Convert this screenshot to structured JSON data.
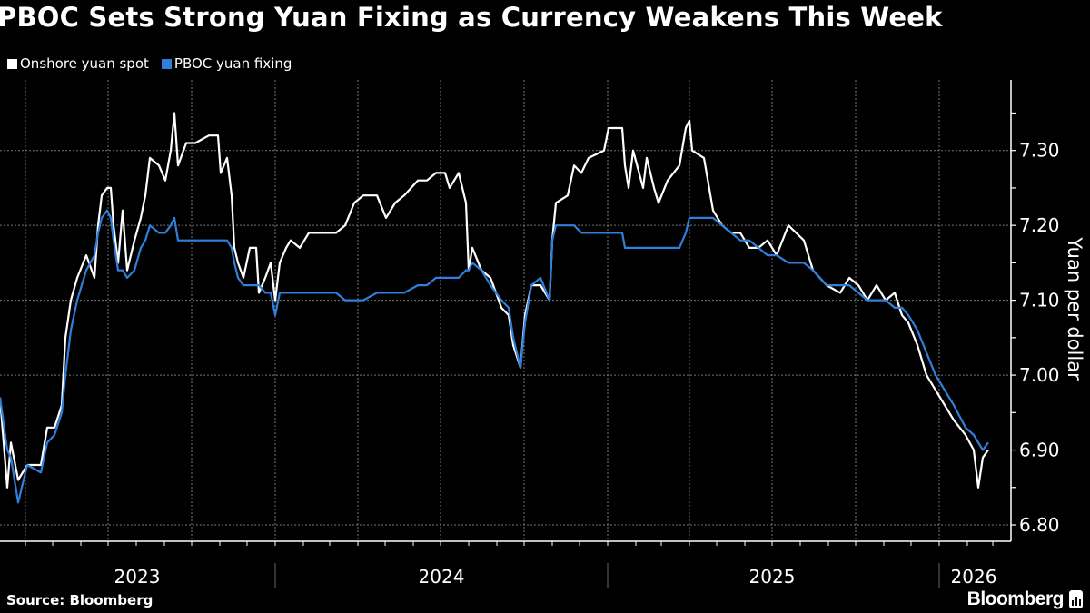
{
  "title": "PBOC Sets Strong Yuan Fixing as Currency Weakens This Week",
  "source": "Source: Bloomberg",
  "logo": "Bloomberg",
  "chart_data": {
    "type": "line",
    "ylabel": "Yuan per dollar",
    "xlabel": "",
    "ylim": [
      6.78,
      7.395
    ],
    "y_ticks": [
      "6.80",
      "6.90",
      "7.00",
      "7.10",
      "7.20",
      "7.30"
    ],
    "x_tick_labels": [
      "2023",
      "2024",
      "2025",
      "2026"
    ],
    "xlim": [
      "2023-03-04",
      "2026-02-26"
    ],
    "grid": true,
    "y_axis_side": "right",
    "legend_position": "top-left",
    "x": [
      "2023-03-04",
      "2023-03-12",
      "2023-03-16",
      "2023-03-24",
      "2023-04-03",
      "2023-04-18",
      "2023-04-25",
      "2023-05-03",
      "2023-05-11",
      "2023-05-15",
      "2023-05-21",
      "2023-05-28",
      "2023-06-07",
      "2023-06-16",
      "2023-06-20",
      "2023-06-24",
      "2023-06-30",
      "2023-07-04",
      "2023-07-07",
      "2023-07-12",
      "2023-07-17",
      "2023-07-22",
      "2023-07-30",
      "2023-08-06",
      "2023-08-11",
      "2023-08-16",
      "2023-08-26",
      "2023-09-02",
      "2023-09-08",
      "2023-09-12",
      "2023-09-16",
      "2023-09-25",
      "2023-10-05",
      "2023-10-20",
      "2023-10-30",
      "2023-11-02",
      "2023-11-09",
      "2023-11-14",
      "2023-11-17",
      "2023-11-21",
      "2023-11-27",
      "2023-12-04",
      "2023-12-11",
      "2023-12-14",
      "2023-12-21",
      "2023-12-27",
      "2024-01-01",
      "2024-01-06",
      "2024-01-13",
      "2024-01-18",
      "2024-01-28",
      "2024-02-07",
      "2024-02-17",
      "2024-02-27",
      "2024-03-08",
      "2024-03-18",
      "2024-03-28",
      "2024-04-07",
      "2024-04-22",
      "2024-05-02",
      "2024-05-12",
      "2024-05-22",
      "2024-06-06",
      "2024-06-16",
      "2024-06-26",
      "2024-07-06",
      "2024-07-11",
      "2024-07-21",
      "2024-07-29",
      "2024-08-01",
      "2024-08-05",
      "2024-08-15",
      "2024-08-25",
      "2024-09-06",
      "2024-09-14",
      "2024-09-19",
      "2024-09-27",
      "2024-10-02",
      "2024-10-09",
      "2024-10-19",
      "2024-10-29",
      "2024-11-01",
      "2024-11-05",
      "2024-11-18",
      "2024-11-25",
      "2024-12-03",
      "2024-12-11",
      "2024-12-28",
      "2025-01-02",
      "2025-01-17",
      "2025-01-20",
      "2025-01-24",
      "2025-01-29",
      "2025-02-09",
      "2025-02-13",
      "2025-02-21",
      "2025-02-26",
      "2025-03-08",
      "2025-03-21",
      "2025-03-28",
      "2025-04-01",
      "2025-04-04",
      "2025-04-17",
      "2025-04-27",
      "2025-05-07",
      "2025-05-17",
      "2025-05-27",
      "2025-06-06",
      "2025-06-16",
      "2025-06-26",
      "2025-07-06",
      "2025-07-19",
      "2025-08-05",
      "2025-08-15",
      "2025-08-30",
      "2025-09-14",
      "2025-09-24",
      "2025-10-04",
      "2025-10-14",
      "2025-10-24",
      "2025-11-03",
      "2025-11-13",
      "2025-11-21",
      "2025-11-28",
      "2025-12-08",
      "2025-12-18",
      "2025-12-28",
      "2026-01-07",
      "2026-01-17",
      "2026-01-30",
      "2026-02-08",
      "2026-02-13",
      "2026-02-18",
      "2026-02-24"
    ],
    "series": [
      {
        "name": "Onshore yuan spot",
        "color": "#ffffff",
        "values": [
          6.97,
          6.85,
          6.91,
          6.86,
          6.88,
          6.88,
          6.93,
          6.93,
          6.96,
          7.05,
          7.1,
          7.13,
          7.16,
          7.13,
          7.2,
          7.24,
          7.25,
          7.25,
          7.2,
          7.15,
          7.22,
          7.14,
          7.18,
          7.21,
          7.24,
          7.29,
          7.28,
          7.26,
          7.3,
          7.35,
          7.28,
          7.31,
          7.31,
          7.32,
          7.32,
          7.27,
          7.29,
          7.24,
          7.17,
          7.15,
          7.13,
          7.17,
          7.17,
          7.11,
          7.13,
          7.15,
          7.1,
          7.15,
          7.17,
          7.18,
          7.17,
          7.19,
          7.19,
          7.19,
          7.19,
          7.2,
          7.23,
          7.24,
          7.24,
          7.21,
          7.23,
          7.24,
          7.26,
          7.26,
          7.27,
          7.27,
          7.25,
          7.27,
          7.23,
          7.14,
          7.17,
          7.14,
          7.13,
          7.09,
          7.08,
          7.04,
          7.01,
          7.08,
          7.12,
          7.12,
          7.1,
          7.18,
          7.23,
          7.24,
          7.28,
          7.27,
          7.29,
          7.3,
          7.33,
          7.33,
          7.28,
          7.25,
          7.3,
          7.25,
          7.29,
          7.25,
          7.23,
          7.26,
          7.28,
          7.33,
          7.34,
          7.3,
          7.29,
          7.22,
          7.2,
          7.19,
          7.19,
          7.17,
          7.17,
          7.18,
          7.16,
          7.2,
          7.18,
          7.14,
          7.12,
          7.11,
          7.13,
          7.12,
          7.1,
          7.12,
          7.1,
          7.11,
          7.08,
          7.07,
          7.04,
          7.0,
          6.98,
          6.96,
          6.94,
          6.92,
          6.9,
          6.85,
          6.89,
          6.9
        ]
      },
      {
        "name": "PBOC yuan fixing",
        "color": "#2f80dc",
        "values": [
          6.97,
          6.9,
          6.89,
          6.83,
          6.88,
          6.87,
          6.91,
          6.92,
          6.95,
          7.0,
          7.06,
          7.1,
          7.14,
          7.16,
          7.19,
          7.21,
          7.22,
          7.21,
          7.18,
          7.14,
          7.14,
          7.13,
          7.14,
          7.17,
          7.18,
          7.2,
          7.19,
          7.19,
          7.2,
          7.21,
          7.18,
          7.18,
          7.18,
          7.18,
          7.18,
          7.18,
          7.18,
          7.17,
          7.15,
          7.13,
          7.12,
          7.12,
          7.12,
          7.12,
          7.11,
          7.11,
          7.08,
          7.11,
          7.11,
          7.11,
          7.11,
          7.11,
          7.11,
          7.11,
          7.11,
          7.1,
          7.1,
          7.1,
          7.11,
          7.11,
          7.11,
          7.11,
          7.12,
          7.12,
          7.13,
          7.13,
          7.13,
          7.13,
          7.14,
          7.14,
          7.15,
          7.14,
          7.12,
          7.1,
          7.09,
          7.05,
          7.01,
          7.07,
          7.12,
          7.13,
          7.1,
          7.18,
          7.2,
          7.2,
          7.2,
          7.19,
          7.19,
          7.19,
          7.19,
          7.19,
          7.17,
          7.17,
          7.17,
          7.17,
          7.17,
          7.17,
          7.17,
          7.17,
          7.17,
          7.19,
          7.21,
          7.21,
          7.21,
          7.21,
          7.2,
          7.19,
          7.18,
          7.18,
          7.17,
          7.16,
          7.16,
          7.15,
          7.15,
          7.14,
          7.12,
          7.12,
          7.12,
          7.11,
          7.1,
          7.1,
          7.1,
          7.09,
          7.09,
          7.08,
          7.06,
          7.03,
          7.0,
          6.98,
          6.96,
          6.93,
          6.92,
          6.91,
          6.9,
          6.91
        ]
      }
    ]
  }
}
